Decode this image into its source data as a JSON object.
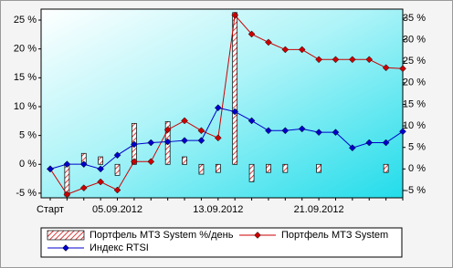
{
  "chart_data": {
    "type": "bar+line",
    "categories": [
      "Старт",
      null,
      null,
      null,
      "05.09.2012",
      null,
      null,
      null,
      null,
      null,
      "13.09.2012",
      null,
      null,
      null,
      null,
      null,
      "21.09.2012",
      null,
      null,
      null,
      null,
      null
    ],
    "series": [
      {
        "name": "Портфель MTЗ System %/день",
        "type": "bar",
        "axis": "y",
        "color": "#cc0000",
        "values": [
          0,
          -5.5,
          1.9,
          1.3,
          -1.9,
          7.1,
          0,
          7.4,
          1.3,
          -1.7,
          -1.4,
          26.3,
          -3,
          -1.4,
          -1.4,
          0,
          -1.4,
          0,
          0,
          0,
          -1.4,
          0
        ]
      },
      {
        "name": "Портфель MTЗ System",
        "type": "line",
        "axis": "y2",
        "color": "#cc0000",
        "values": [
          0,
          -5.9,
          -4.4,
          -3,
          -4.9,
          1.7,
          1.7,
          9.1,
          11.2,
          8.9,
          7.2,
          35.7,
          31.3,
          29.4,
          27.7,
          27.7,
          25.4,
          25.4,
          25.4,
          25.4,
          23.5,
          23.3
        ]
      },
      {
        "name": "Индекс RTSI",
        "type": "line",
        "axis": "y2",
        "color": "#0000cc",
        "values": [
          0,
          1.1,
          1.1,
          0,
          3.2,
          5.7,
          6.1,
          6.3,
          6.6,
          6.6,
          14.2,
          13.3,
          11.2,
          8.9,
          8.9,
          9.3,
          8.5,
          8.5,
          4.9,
          6.1,
          6.1,
          8.7
        ]
      }
    ],
    "ylim": [
      -5.8,
      26.9
    ],
    "yticks": [
      {
        "value": -5,
        "label": "-5 %"
      },
      {
        "value": 0,
        "label": "0 %"
      },
      {
        "value": 5,
        "label": "5 %"
      },
      {
        "value": 10,
        "label": "10 %"
      },
      {
        "value": 15,
        "label": "15 %"
      },
      {
        "value": 20,
        "label": "20 %"
      },
      {
        "value": 25,
        "label": "25 %"
      }
    ],
    "y2lim": [
      -6.7,
      37.1
    ],
    "y2ticks": [
      {
        "value": -5,
        "label": "-5 %"
      },
      {
        "value": 0,
        "label": "0 %"
      },
      {
        "value": 5,
        "label": "5 %"
      },
      {
        "value": 10,
        "label": "10 %"
      },
      {
        "value": 15,
        "label": "15 %"
      },
      {
        "value": 20,
        "label": "20 %"
      },
      {
        "value": 25,
        "label": "25 %"
      },
      {
        "value": 30,
        "label": "30 %"
      },
      {
        "value": 35,
        "label": "35 %"
      }
    ]
  }
}
